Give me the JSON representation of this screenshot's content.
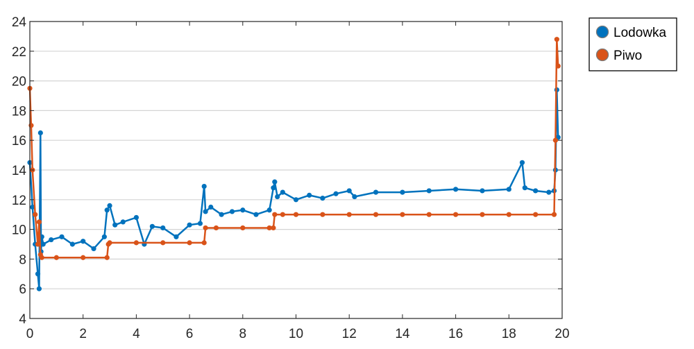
{
  "chart_data": {
    "type": "line",
    "title": "",
    "xlabel": "",
    "ylabel": "",
    "xlim": [
      0,
      20
    ],
    "ylim": [
      4,
      24
    ],
    "xticks": [
      "0",
      "2",
      "4",
      "6",
      "8",
      "10",
      "12",
      "14",
      "16",
      "18",
      "20"
    ],
    "yticks": [
      "4",
      "6",
      "8",
      "10",
      "12",
      "14",
      "16",
      "18",
      "20",
      "22",
      "24"
    ],
    "grid": "horizontal",
    "legend_position": "outside-top-right",
    "markers": true,
    "series": [
      {
        "name": "Lodowka",
        "color": "#0072BD",
        "x": [
          0,
          0.1,
          0.2,
          0.3,
          0.35,
          0.4,
          0.42,
          0.45,
          0.5,
          0.8,
          1.2,
          1.6,
          2.0,
          2.4,
          2.8,
          2.9,
          3.0,
          3.2,
          3.5,
          4.0,
          4.3,
          4.6,
          5.0,
          5.5,
          6.0,
          6.4,
          6.55,
          6.6,
          6.8,
          7.2,
          7.6,
          8.0,
          8.5,
          9.0,
          9.15,
          9.2,
          9.3,
          9.5,
          10.0,
          10.5,
          11.0,
          11.5,
          12.0,
          12.2,
          13.0,
          14.0,
          15.0,
          16.0,
          17.0,
          18.0,
          18.5,
          18.6,
          19.0,
          19.5,
          19.7,
          19.75,
          19.8,
          19.85
        ],
        "values": [
          14.5,
          11.5,
          9.0,
          7.0,
          6.0,
          16.5,
          8.5,
          9.5,
          9.0,
          9.3,
          9.5,
          9.0,
          9.2,
          8.7,
          9.5,
          11.3,
          11.6,
          10.3,
          10.5,
          10.8,
          9.0,
          10.2,
          10.1,
          9.5,
          10.3,
          10.4,
          12.9,
          11.2,
          11.5,
          11.0,
          11.2,
          11.3,
          11.0,
          11.3,
          12.8,
          13.2,
          12.2,
          12.5,
          12.0,
          12.3,
          12.1,
          12.4,
          12.6,
          12.2,
          12.5,
          12.5,
          12.6,
          12.7,
          12.6,
          12.7,
          14.5,
          12.8,
          12.6,
          12.5,
          12.6,
          14.0,
          19.4,
          16.2
        ]
      },
      {
        "name": "Piwo",
        "color": "#D95319",
        "x": [
          0,
          0.05,
          0.1,
          0.2,
          0.3,
          0.35,
          0.4,
          0.45,
          1.0,
          2.0,
          2.9,
          2.95,
          3.0,
          4.0,
          5.0,
          6.0,
          6.55,
          6.6,
          7.0,
          8.0,
          9.0,
          9.15,
          9.2,
          9.5,
          10.0,
          11.0,
          12.0,
          13.0,
          14.0,
          15.0,
          16.0,
          17.0,
          18.0,
          19.0,
          19.7,
          19.75,
          19.8,
          19.85
        ],
        "values": [
          19.5,
          17.0,
          14.0,
          11.0,
          9.0,
          10.5,
          8.3,
          8.1,
          8.1,
          8.1,
          8.1,
          9.0,
          9.1,
          9.1,
          9.1,
          9.1,
          9.1,
          10.1,
          10.1,
          10.1,
          10.1,
          10.1,
          11.0,
          11.0,
          11.0,
          11.0,
          11.0,
          11.0,
          11.0,
          11.0,
          11.0,
          11.0,
          11.0,
          11.0,
          11.0,
          16.0,
          22.8,
          21.0
        ]
      }
    ]
  }
}
